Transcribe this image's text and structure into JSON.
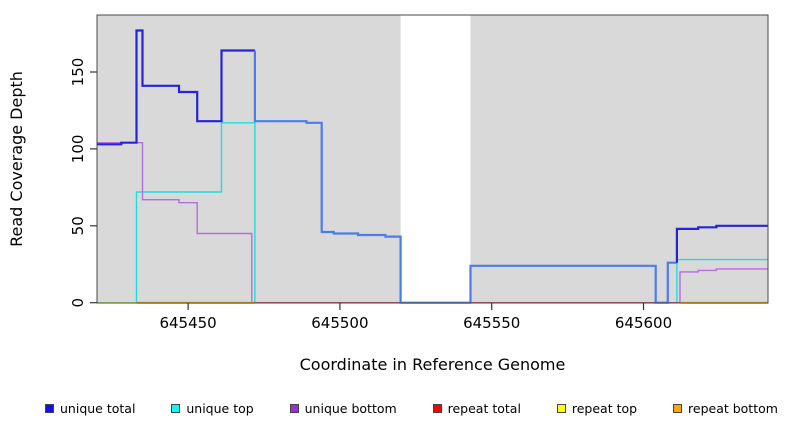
{
  "figure": {
    "panel_bg": "#d9d9d9",
    "gap_bg": "#ffffff",
    "box_color": "#4a4a4a",
    "text_color": "#000000"
  },
  "chart_data": {
    "type": "line",
    "title": "",
    "xlabel": "Coordinate in Reference Genome",
    "ylabel": "Read Coverage Depth",
    "xlim": [
      645420,
      645641
    ],
    "ylim": [
      0,
      187
    ],
    "x_ticks": [
      "645450",
      "645500",
      "645550",
      "645600"
    ],
    "x_tick_values": [
      645450,
      645500,
      645550,
      645600
    ],
    "y_ticks": [
      "0",
      "50",
      "100",
      "150"
    ],
    "y_tick_values": [
      0,
      50,
      100,
      150
    ],
    "grid": false,
    "legend_position": "bottom",
    "shaded_regions": [
      {
        "x0": 645420,
        "x1": 645520
      },
      {
        "x0": 645543,
        "x1": 645641
      }
    ],
    "series": [
      {
        "name": "unique top",
        "color": "#19e0e0",
        "width": 1.4,
        "segments": [
          [
            [
              645420,
              0
            ],
            [
              645433,
              72
            ],
            [
              645461,
              117
            ],
            [
              645472,
              0
            ],
            [
              645611,
              28
            ],
            [
              645641,
              28
            ]
          ]
        ]
      },
      {
        "name": "unique bottom",
        "color": "#b96be0",
        "width": 1.4,
        "segments": [
          [
            [
              645420,
              104
            ],
            [
              645435,
              67
            ],
            [
              645447,
              65
            ],
            [
              645453,
              45
            ],
            [
              645471,
              0
            ],
            [
              645612,
              20
            ],
            [
              645618,
              21
            ],
            [
              645624,
              22
            ],
            [
              645641,
              22
            ]
          ]
        ]
      },
      {
        "name": "repeat total",
        "color": "#d4496e",
        "width": 1.4,
        "segments": [
          [
            [
              645472,
              0
            ],
            [
              645612,
              0
            ]
          ]
        ]
      },
      {
        "name": "repeat top",
        "color": "#f2f23c",
        "width": 1.4,
        "opacity": 0.75,
        "segments": [
          [
            [
              645420,
              0
            ],
            [
              645433,
              0
            ]
          ]
        ]
      },
      {
        "name": "repeat bottom",
        "color": "#ffa500",
        "width": 2,
        "segments": [
          [
            [
              645433,
              0
            ],
            [
              645472,
              0
            ]
          ],
          [
            [
              645612,
              0
            ],
            [
              645641,
              0
            ]
          ]
        ]
      },
      {
        "name": "unique total",
        "color": "#2020dd",
        "width": 2.2,
        "shade_colors": {
          "dark": "#2424dc",
          "light": "#4b7ce8"
        },
        "shaded_steps": [
          [
            645420,
            103,
            "dark"
          ],
          [
            645428,
            104,
            "dark"
          ],
          [
            645433,
            177,
            "dark"
          ],
          [
            645435,
            141,
            "dark"
          ],
          [
            645447,
            137,
            "dark"
          ],
          [
            645453,
            118,
            "dark"
          ],
          [
            645461,
            164,
            "dark"
          ],
          [
            645472,
            118,
            "light"
          ],
          [
            645489,
            117,
            "light"
          ],
          [
            645494,
            46,
            "light"
          ],
          [
            645498,
            45,
            "light"
          ],
          [
            645506,
            44,
            "light"
          ],
          [
            645515,
            43,
            "light"
          ],
          [
            645520,
            0,
            "light"
          ],
          [
            645543,
            24,
            "light"
          ],
          [
            645604,
            0,
            "light"
          ],
          [
            645608,
            26,
            "light"
          ],
          [
            645611,
            48,
            "dark"
          ],
          [
            645618,
            49,
            "dark"
          ],
          [
            645624,
            50,
            "dark"
          ],
          [
            645641,
            50,
            "dark"
          ]
        ]
      }
    ]
  },
  "legend": {
    "items": [
      {
        "label": "unique total",
        "color": "#1010ee"
      },
      {
        "label": "unique top",
        "color": "#00ffff"
      },
      {
        "label": "unique bottom",
        "color": "#9a2fd6"
      },
      {
        "label": "repeat total",
        "color": "#ff0000"
      },
      {
        "label": "repeat top",
        "color": "#ffff00"
      },
      {
        "label": "repeat bottom",
        "color": "#ffa500"
      }
    ]
  }
}
